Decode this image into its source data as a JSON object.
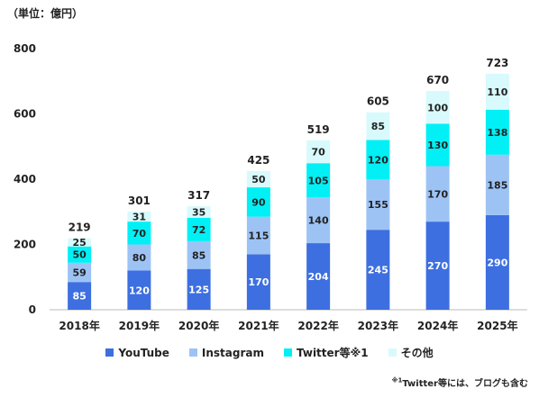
{
  "chart_data": {
    "type": "bar",
    "stacked": true,
    "unit_label": "（単位：億円）",
    "categories": [
      "2018年",
      "2019年",
      "2020年",
      "2021年",
      "2022年",
      "2023年",
      "2024年",
      "2025年"
    ],
    "series": [
      {
        "name": "YouTube",
        "color": "#3D6FE0",
        "values": [
          85,
          120,
          125,
          170,
          204,
          245,
          270,
          290
        ]
      },
      {
        "name": "Instagram",
        "color": "#9DC3F5",
        "values": [
          59,
          80,
          85,
          115,
          140,
          155,
          170,
          185
        ]
      },
      {
        "name": "Twitter等※1",
        "color": "#00F0F5",
        "values": [
          50,
          70,
          72,
          90,
          105,
          120,
          130,
          138
        ]
      },
      {
        "name": "その他",
        "color": "#D8FAFC",
        "values": [
          25,
          31,
          35,
          50,
          70,
          85,
          100,
          110
        ]
      }
    ],
    "totals": [
      219,
      301,
      317,
      425,
      519,
      605,
      670,
      723
    ],
    "ylim": [
      0,
      800
    ],
    "yticks": [
      0,
      200,
      400,
      600,
      800
    ],
    "grid": false,
    "legend_position": "bottom"
  },
  "footnote": {
    "mark": "※1",
    "text": "Twitter等には、ブログも含む"
  }
}
